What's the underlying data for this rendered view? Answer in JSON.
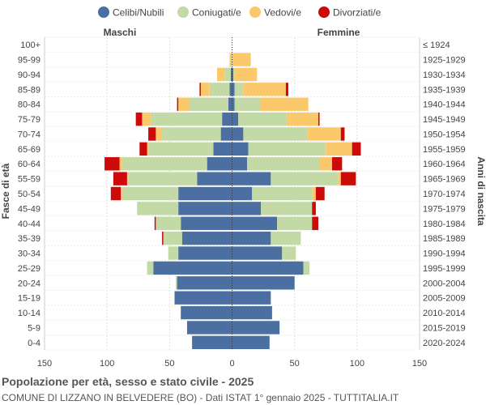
{
  "chart_data": {
    "type": "bar",
    "orientation": "horizontal-population-pyramid",
    "legend": {
      "position": "top",
      "entries": [
        {
          "key": "celibi",
          "label": "Celibi/Nubili",
          "color": "#4a6fa0"
        },
        {
          "key": "coniugati",
          "label": "Coniugati/e",
          "color": "#c3d9a6"
        },
        {
          "key": "vedovi",
          "label": "Vedovi/e",
          "color": "#fbc96b"
        },
        {
          "key": "divorziati",
          "label": "Divorziati/e",
          "color": "#cc0a0a"
        }
      ]
    },
    "side_labels": {
      "left": "Maschi",
      "right": "Femmine"
    },
    "ylabel_left": "Fasce di età",
    "ylabel_right": "Anni di nascita",
    "xaxis": {
      "ticks": [
        "150",
        "100",
        "50",
        "0",
        "50",
        "100",
        "150"
      ],
      "max": 150
    },
    "grid": true,
    "age_groups": [
      "100+",
      "95-99",
      "90-94",
      "85-89",
      "80-84",
      "75-79",
      "70-74",
      "65-69",
      "60-64",
      "55-59",
      "50-54",
      "45-49",
      "40-44",
      "35-39",
      "30-34",
      "25-29",
      "20-24",
      "15-19",
      "10-14",
      "5-9",
      "0-4"
    ],
    "birth_years": [
      "≤ 1924",
      "1925-1929",
      "1930-1934",
      "1935-1939",
      "1940-1944",
      "1945-1949",
      "1950-1954",
      "1955-1959",
      "1960-1964",
      "1965-1969",
      "1970-1974",
      "1975-1979",
      "1980-1984",
      "1985-1989",
      "1990-1994",
      "1995-1999",
      "2000-2004",
      "2005-2009",
      "2010-2014",
      "2015-2019",
      "2020-2024"
    ],
    "males": {
      "celibi": [
        0,
        0,
        1,
        2,
        3,
        8,
        9,
        15,
        20,
        28,
        43,
        43,
        41,
        40,
        43,
        63,
        44,
        46,
        41,
        36,
        32
      ],
      "coniugati": [
        0,
        1,
        5,
        16,
        31,
        57,
        47,
        52,
        68,
        55,
        45,
        33,
        20,
        15,
        8,
        5,
        1,
        0,
        0,
        0,
        0
      ],
      "vedovi": [
        0,
        1,
        6,
        7,
        9,
        7,
        5,
        1,
        2,
        1,
        1,
        0,
        0,
        0,
        0,
        0,
        0,
        0,
        0,
        0,
        0
      ],
      "divorziati": [
        0,
        0,
        0,
        1,
        1,
        5,
        6,
        6,
        12,
        11,
        8,
        0,
        1,
        1,
        0,
        0,
        0,
        0,
        0,
        0,
        0
      ]
    },
    "females": {
      "celibi": [
        0,
        0,
        1,
        2,
        2,
        5,
        9,
        13,
        12,
        31,
        16,
        23,
        36,
        31,
        40,
        57,
        50,
        31,
        32,
        38,
        30
      ],
      "coniugati": [
        0,
        0,
        1,
        7,
        21,
        39,
        51,
        62,
        58,
        54,
        48,
        41,
        28,
        24,
        11,
        5,
        0,
        0,
        0,
        0,
        0
      ],
      "vedovi": [
        0,
        15,
        18,
        34,
        38,
        25,
        27,
        21,
        10,
        2,
        3,
        0,
        0,
        0,
        0,
        0,
        0,
        0,
        0,
        0,
        0
      ],
      "divorziati": [
        0,
        0,
        0,
        2,
        0,
        1,
        3,
        7,
        8,
        12,
        7,
        3,
        5,
        0,
        0,
        0,
        0,
        0,
        0,
        0,
        0
      ]
    }
  },
  "footer": {
    "title": "Popolazione per età, sesso e stato civile - 2025",
    "subtitle": "COMUNE DI LIZZANO IN BELVEDERE (BO) - Dati ISTAT 1° gennaio 2025 - TUTTITALIA.IT"
  }
}
